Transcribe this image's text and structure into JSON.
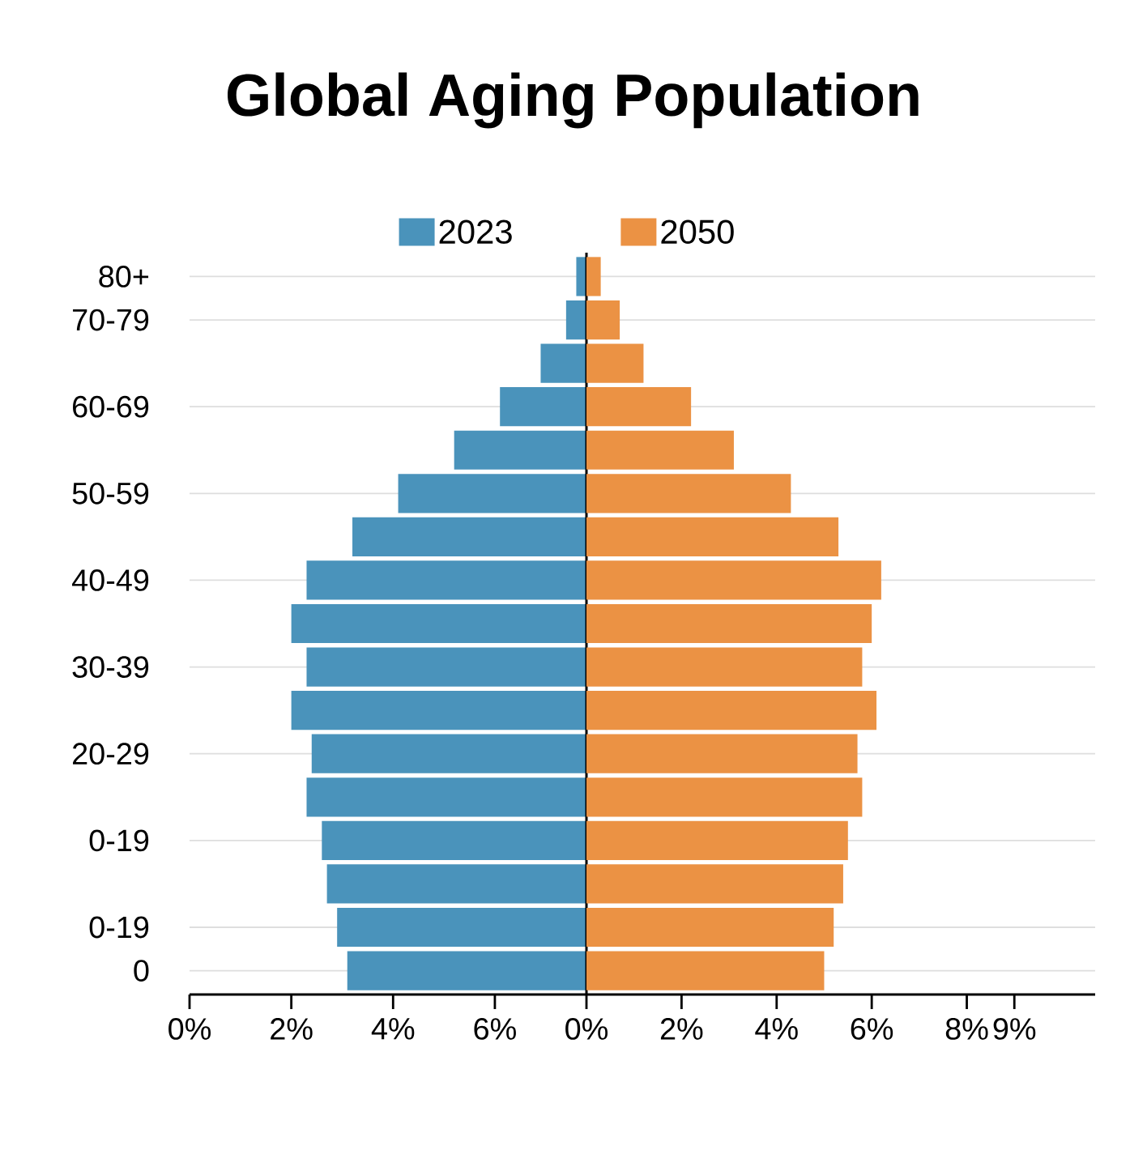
{
  "chart_data": [
    {
      "type": "bar",
      "orientation": "horizontal",
      "categories": [
        "80+",
        "70-79",
        null,
        "60-69",
        null,
        "50-59",
        null,
        "40-49",
        null,
        "30-39",
        null,
        "20-29",
        null,
        "0-19",
        null,
        "0-19",
        "0"
      ],
      "series": [
        {
          "name": "2023",
          "color": "#4a93bb",
          "base": [
            7.6,
            7.4,
            6.9,
            6.1,
            5.2,
            4.1,
            3.2,
            2.3,
            2.0,
            2.3,
            2.0,
            2.4,
            2.3,
            2.6,
            2.7,
            2.9,
            3.1
          ],
          "values": [
            0.2,
            0.4,
            0.9,
            1.7,
            2.6,
            3.7,
            4.6,
            5.5,
            5.8,
            5.5,
            5.8,
            5.4,
            5.5,
            5.2,
            5.1,
            4.9,
            4.7
          ]
        }
      ],
      "xlim": [
        0,
        7.8
      ],
      "xticks": [
        {
          "value": 0,
          "label": "0%"
        },
        {
          "value": 2,
          "label": "2%"
        },
        {
          "value": 4,
          "label": "4%"
        },
        {
          "value": 6,
          "label": "6%"
        }
      ],
      "grid": "y",
      "legend": "top"
    },
    {
      "type": "bar",
      "orientation": "horizontal",
      "title": "Global Aging Population",
      "categories": [
        null,
        null,
        null,
        null,
        null,
        null,
        null,
        null,
        null,
        null,
        null,
        null,
        null,
        null,
        null,
        null,
        null
      ],
      "series": [
        {
          "name": "2050",
          "color": "#eb9244",
          "values": [
            0.3,
            0.7,
            1.2,
            2.2,
            3.1,
            4.3,
            5.3,
            6.2,
            6.0,
            5.8,
            6.1,
            5.7,
            5.8,
            5.5,
            5.4,
            5.2,
            5.0
          ]
        }
      ],
      "xlim": [
        0,
        10.7
      ],
      "xticks": [
        {
          "value": 0,
          "label": "0%"
        },
        {
          "value": 2,
          "label": "2%"
        },
        {
          "value": 4,
          "label": "4%"
        },
        {
          "value": 6,
          "label": "6%"
        },
        {
          "value": 8,
          "label": "8%"
        },
        {
          "value": 9,
          "label": "9%"
        }
      ],
      "tick_labels": "x",
      "grid": "y",
      "legend": "top"
    }
  ]
}
